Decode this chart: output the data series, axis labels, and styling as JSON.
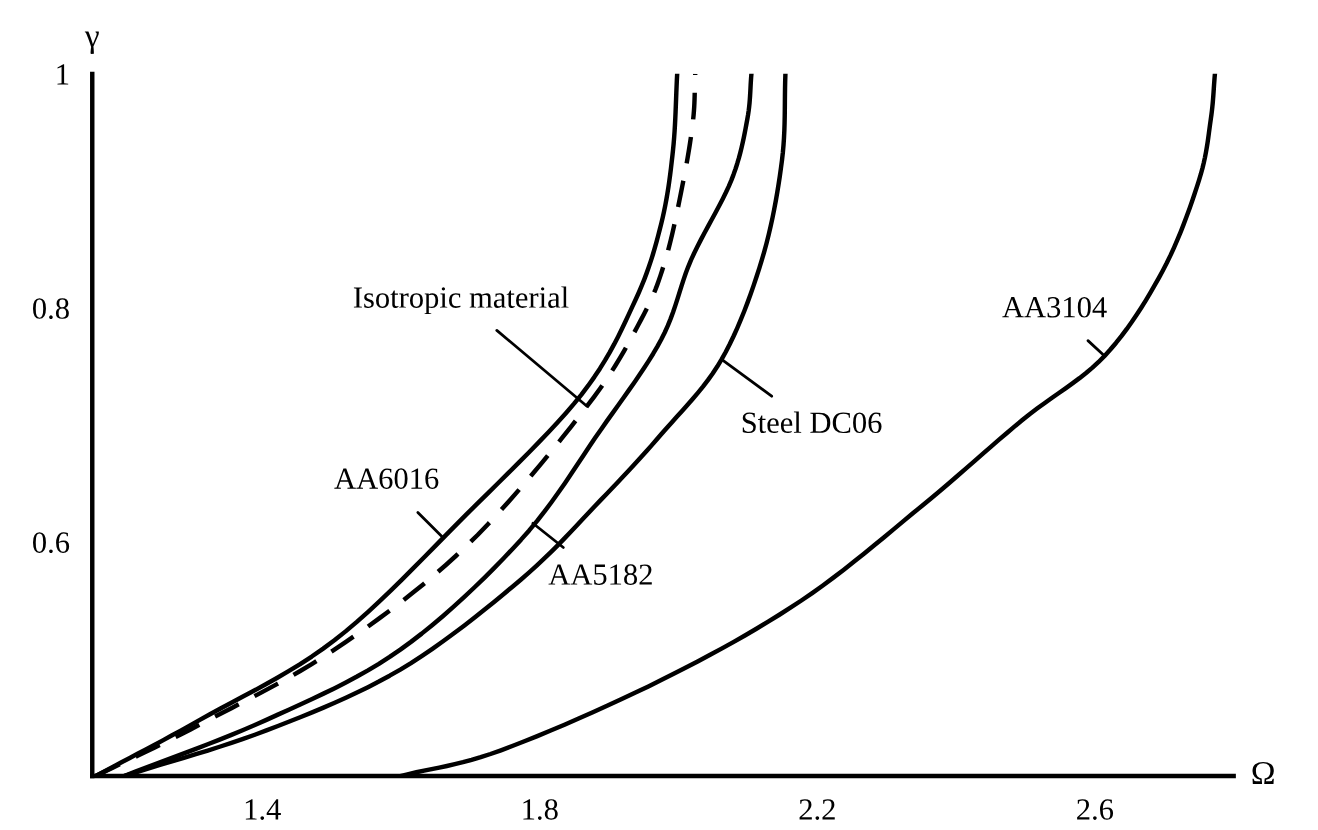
{
  "chart_data": {
    "type": "line",
    "xlabel": "Ω",
    "ylabel": "γ",
    "xlim": [
      1.155,
      2.8
    ],
    "ylim": [
      0.4,
      1.0
    ],
    "xticks": [
      1.4,
      1.8,
      2.2,
      2.6
    ],
    "yticks": [
      0.6,
      0.8,
      1
    ],
    "grid": false,
    "legend": false,
    "marker": "none",
    "series": [
      {
        "color": "#000000",
        "line_style": "solid",
        "x": [
          1.16,
          1.31,
          1.504,
          1.695,
          1.86,
          1.938,
          1.975,
          1.992,
          1.998
        ],
        "values": [
          0.4,
          0.448,
          0.516,
          0.624,
          0.726,
          0.807,
          0.872,
          0.935,
          1.0
        ]
      },
      {
        "color": "#000000",
        "line_style": "dashed",
        "x": [
          1.16,
          1.31,
          1.504,
          1.695,
          1.868,
          1.946,
          1.981,
          2.007,
          2.021,
          2.024
        ],
        "values": [
          0.4,
          0.444,
          0.508,
          0.597,
          0.716,
          0.79,
          0.841,
          0.909,
          0.961,
          1.0
        ]
      },
      {
        "color": "#000000",
        "line_style": "solid",
        "x": [
          1.201,
          1.406,
          1.599,
          1.773,
          1.888,
          1.975,
          2.018,
          2.076,
          2.099,
          2.105
        ],
        "values": [
          0.4,
          0.448,
          0.508,
          0.602,
          0.696,
          0.773,
          0.841,
          0.909,
          0.961,
          1.0
        ]
      },
      {
        "color": "#000000",
        "line_style": "solid",
        "x": [
          1.201,
          1.406,
          1.599,
          1.773,
          1.888,
          1.975,
          2.062,
          2.12,
          2.149,
          2.154
        ],
        "values": [
          0.4,
          0.439,
          0.491,
          0.568,
          0.636,
          0.692,
          0.756,
          0.841,
          0.926,
          1.0
        ]
      },
      {
        "color": "#000000",
        "line_style": "solid",
        "x": [
          1.599,
          1.744,
          1.975,
          2.177,
          2.351,
          2.495,
          2.614,
          2.698,
          2.75,
          2.767,
          2.773
        ],
        "values": [
          0.4,
          0.422,
          0.482,
          0.55,
          0.631,
          0.704,
          0.759,
          0.832,
          0.909,
          0.961,
          1.0
        ]
      }
    ],
    "annotations": [
      {
        "text": "Isotropic material",
        "x": 1.868,
        "y": 0.716
      },
      {
        "text": "AA6016",
        "x": 1.66,
        "y": 0.604
      },
      {
        "text": "AA5182",
        "x": 1.79,
        "y": 0.616
      },
      {
        "text": "Steel DC06",
        "x": 2.062,
        "y": 0.756
      },
      {
        "text": "AA3104",
        "x": 2.614,
        "y": 0.759
      }
    ]
  }
}
